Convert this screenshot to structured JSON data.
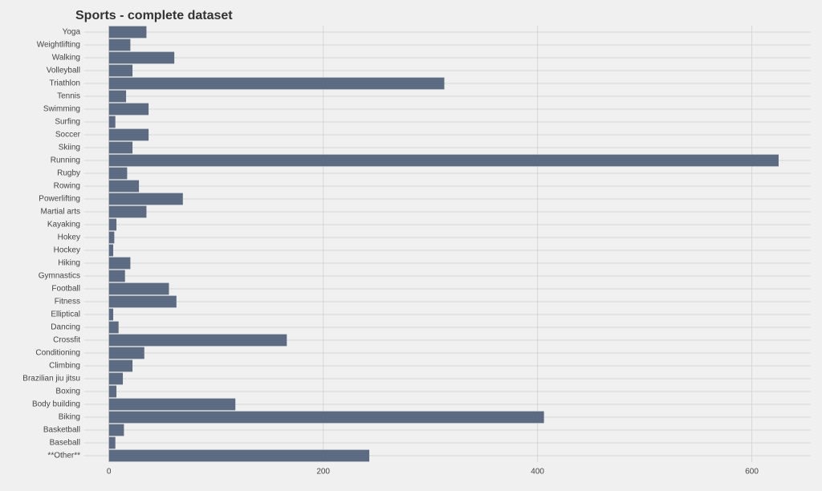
{
  "chart_data": {
    "type": "barh",
    "title": "Sports - complete dataset",
    "categories": [
      "Yoga",
      "Weightlifting",
      "Walking",
      "Volleyball",
      "Triathlon",
      "Tennis",
      "Swimming",
      "Surfing",
      "Soccer",
      "Skiing",
      "Running",
      "Rugby",
      "Rowing",
      "Powerlifting",
      "Martial arts",
      "Kayaking",
      "Hokey",
      "Hockey",
      "Hiking",
      "Gymnastics",
      "Football",
      "Fitness",
      "Elliptical",
      "Dancing",
      "Crossfit",
      "Conditioning",
      "Climbing",
      "Brazilian jiu jitsu",
      "Boxing",
      "Body building",
      "Biking",
      "Basketball",
      "Baseball",
      "**Other**"
    ],
    "values": [
      35,
      20,
      61,
      22,
      313,
      16,
      37,
      6,
      37,
      22,
      625,
      17,
      28,
      69,
      35,
      7,
      5,
      4,
      20,
      15,
      56,
      63,
      4,
      9,
      166,
      33,
      22,
      13,
      7,
      118,
      406,
      14,
      6,
      243
    ],
    "color": "#5d6b82",
    "xlim": [
      -23,
      655
    ],
    "xticks": [
      0,
      200,
      400,
      600
    ],
    "grid": true
  }
}
